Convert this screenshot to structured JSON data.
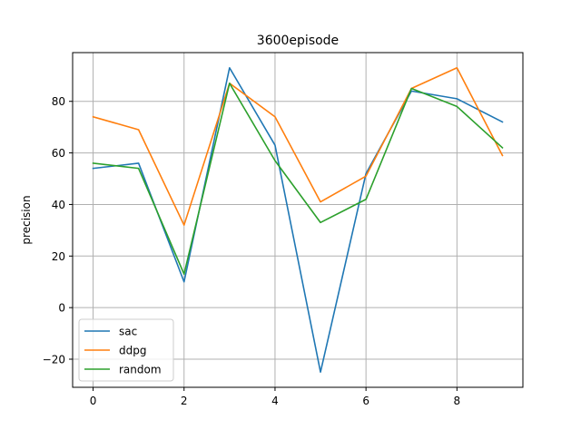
{
  "chart_data": {
    "type": "line",
    "title": "3600episode",
    "xlabel": "",
    "ylabel": "precision",
    "x": [
      0,
      1,
      2,
      3,
      4,
      5,
      6,
      7,
      8,
      9
    ],
    "xlim": [
      -0.45,
      9.45
    ],
    "ylim": [
      -30.9,
      98.9
    ],
    "x_ticks": [
      0,
      2,
      4,
      6,
      8
    ],
    "y_ticks": [
      -20,
      0,
      20,
      40,
      60,
      80
    ],
    "x_tick_labels": [
      "0",
      "2",
      "4",
      "6",
      "8"
    ],
    "y_tick_labels": [
      "−20",
      "0",
      "20",
      "40",
      "60",
      "80"
    ],
    "grid": true,
    "legend_position": "lower-left",
    "series": [
      {
        "name": "sac",
        "color": "#1f77b4",
        "values": [
          54,
          56,
          10,
          93,
          63,
          -25,
          52,
          84,
          81,
          72
        ]
      },
      {
        "name": "ddpg",
        "color": "#ff7f0e",
        "values": [
          74,
          69,
          32,
          87,
          74,
          41,
          51,
          85,
          93,
          59
        ]
      },
      {
        "name": "random",
        "color": "#2ca02c",
        "values": [
          56,
          54,
          13,
          87,
          57,
          33,
          42,
          85,
          78,
          62
        ]
      }
    ]
  }
}
